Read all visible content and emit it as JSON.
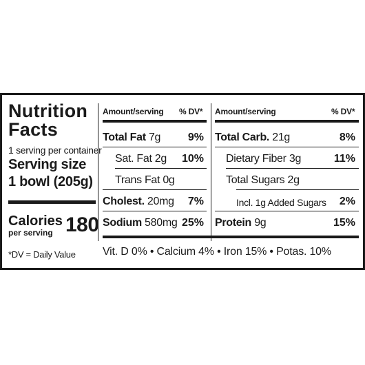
{
  "title_line1": "Nutrition",
  "title_line2": "Facts",
  "servings_per_container": "1 serving per container",
  "serving_size_label": "Serving size",
  "serving_size_value": "1 bowl (205g)",
  "calories_label": "Calories",
  "calories_sub": "per serving",
  "calories_value": "180",
  "dv_note": "*DV = Daily Value",
  "header": {
    "amount": "Amount/serving",
    "dv": "% DV*"
  },
  "left_rows": [
    {
      "name": "Total Fat",
      "amount": "7g",
      "dv": "9%"
    },
    {
      "name": "Sat. Fat",
      "amount": "2g",
      "dv": "10%"
    },
    {
      "name": "Trans Fat",
      "amount": "0g",
      "dv": ""
    },
    {
      "name": "Cholest.",
      "amount": "20mg",
      "dv": "7%"
    },
    {
      "name": "Sodium",
      "amount": "580mg",
      "dv": "25%"
    }
  ],
  "right_rows": [
    {
      "name": "Total Carb.",
      "amount": "21g",
      "dv": "8%"
    },
    {
      "name": "Dietary Fiber",
      "amount": "3g",
      "dv": "11%"
    },
    {
      "name": "Total Sugars",
      "amount": "2g",
      "dv": ""
    },
    {
      "name": "Incl. 1g Added Sugars",
      "amount": "",
      "dv": "2%"
    },
    {
      "name": "Protein",
      "amount": "9g",
      "dv": "15%"
    }
  ],
  "vitamins": "Vit. D 0% • Calcium 4% • Iron 15% • Potas. 10%"
}
